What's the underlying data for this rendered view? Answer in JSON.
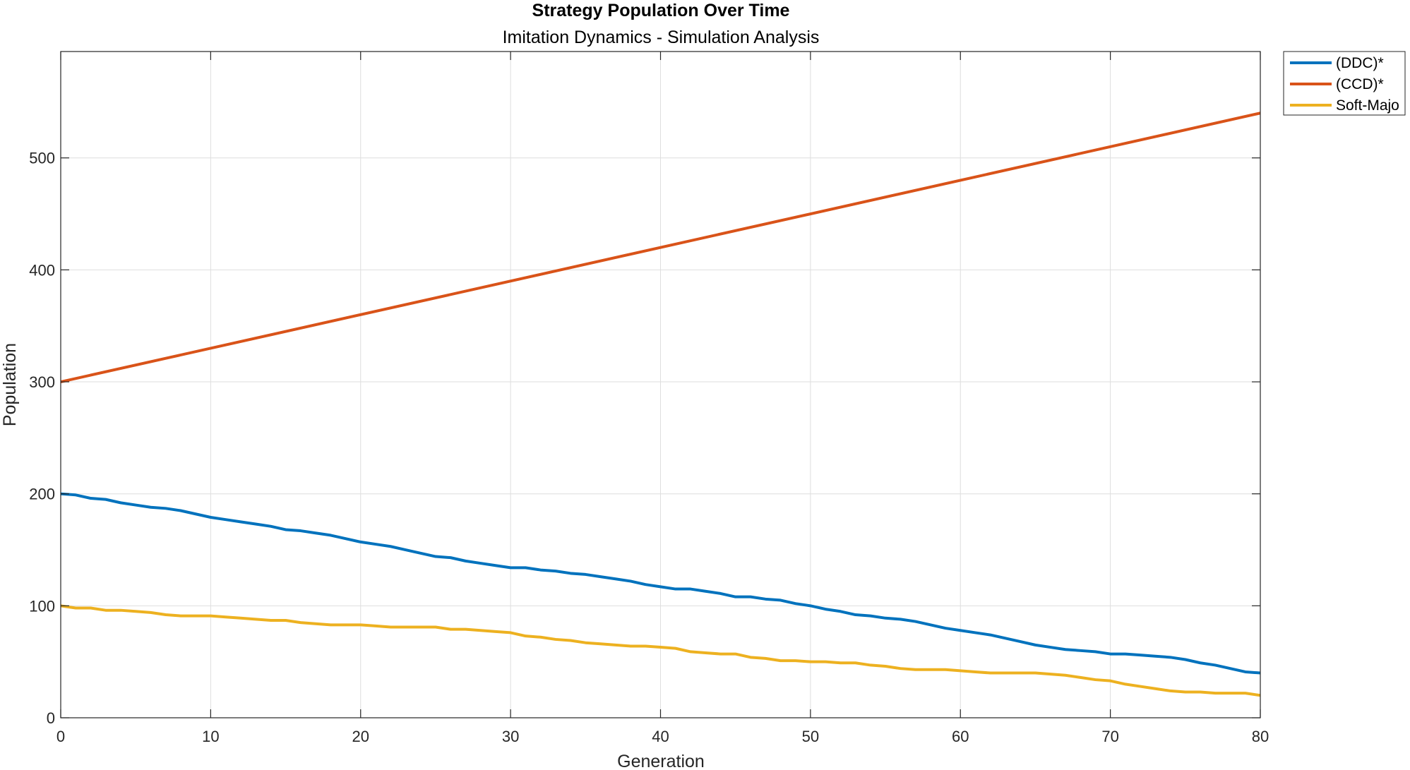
{
  "chart_data": {
    "type": "line",
    "title": "Strategy Population Over Time",
    "subtitle": "Imitation Dynamics - Simulation Analysis",
    "xlabel": "Generation",
    "ylabel": "Population",
    "xlim": [
      0,
      80
    ],
    "ylim": [
      0,
      595
    ],
    "xticks": [
      0,
      10,
      20,
      30,
      40,
      50,
      60,
      70,
      80
    ],
    "yticks": [
      0,
      100,
      200,
      300,
      400,
      500
    ],
    "grid": true,
    "legend_position": "outside-top-right",
    "series": [
      {
        "name": "(DDC)*",
        "color": "#0072BD",
        "x": [
          0,
          1,
          2,
          3,
          4,
          5,
          6,
          7,
          8,
          9,
          10,
          11,
          12,
          13,
          14,
          15,
          16,
          17,
          18,
          19,
          20,
          21,
          22,
          23,
          24,
          25,
          26,
          27,
          28,
          29,
          30,
          31,
          32,
          33,
          34,
          35,
          36,
          37,
          38,
          39,
          40,
          41,
          42,
          43,
          44,
          45,
          46,
          47,
          48,
          49,
          50,
          51,
          52,
          53,
          54,
          55,
          56,
          57,
          58,
          59,
          60,
          61,
          62,
          63,
          64,
          65,
          66,
          67,
          68,
          69,
          70,
          71,
          72,
          73,
          74,
          75,
          76,
          77,
          78,
          79,
          80
        ],
        "y": [
          200,
          199,
          196,
          195,
          192,
          190,
          188,
          187,
          185,
          182,
          179,
          177,
          175,
          173,
          171,
          168,
          167,
          165,
          163,
          160,
          157,
          155,
          153,
          150,
          147,
          144,
          143,
          140,
          138,
          136,
          134,
          134,
          132,
          131,
          129,
          128,
          126,
          124,
          122,
          119,
          117,
          115,
          115,
          113,
          111,
          108,
          108,
          106,
          105,
          102,
          100,
          97,
          95,
          92,
          91,
          89,
          88,
          86,
          83,
          80,
          78,
          76,
          74,
          71,
          68,
          65,
          63,
          61,
          60,
          59,
          57,
          57,
          56,
          55,
          54,
          52,
          49,
          47,
          44,
          41,
          40
        ]
      },
      {
        "name": "(CCD)*",
        "color": "#D95319",
        "x": [
          0,
          80
        ],
        "y": [
          300,
          540
        ]
      },
      {
        "name": "Soft-Majo",
        "color": "#EDB120",
        "x": [
          0,
          1,
          2,
          3,
          4,
          5,
          6,
          7,
          8,
          9,
          10,
          11,
          12,
          13,
          14,
          15,
          16,
          17,
          18,
          19,
          20,
          21,
          22,
          23,
          24,
          25,
          26,
          27,
          28,
          29,
          30,
          31,
          32,
          33,
          34,
          35,
          36,
          37,
          38,
          39,
          40,
          41,
          42,
          43,
          44,
          45,
          46,
          47,
          48,
          49,
          50,
          51,
          52,
          53,
          54,
          55,
          56,
          57,
          58,
          59,
          60,
          61,
          62,
          63,
          64,
          65,
          66,
          67,
          68,
          69,
          70,
          71,
          72,
          73,
          74,
          75,
          76,
          77,
          78,
          79,
          80
        ],
        "y": [
          100,
          98,
          98,
          96,
          96,
          95,
          94,
          92,
          91,
          91,
          91,
          90,
          89,
          88,
          87,
          87,
          85,
          84,
          83,
          83,
          83,
          82,
          81,
          81,
          81,
          81,
          79,
          79,
          78,
          77,
          76,
          73,
          72,
          70,
          69,
          67,
          66,
          65,
          64,
          64,
          63,
          62,
          59,
          58,
          57,
          57,
          54,
          53,
          51,
          51,
          50,
          50,
          49,
          49,
          47,
          46,
          44,
          43,
          43,
          43,
          42,
          41,
          40,
          40,
          40,
          40,
          39,
          38,
          36,
          34,
          33,
          30,
          28,
          26,
          24,
          23,
          23,
          22,
          22,
          22,
          20
        ]
      }
    ]
  }
}
